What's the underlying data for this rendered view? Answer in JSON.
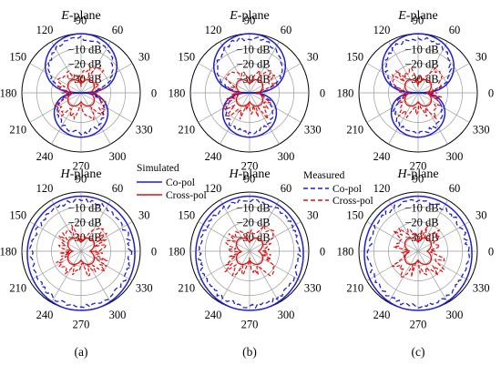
{
  "chart_data": {
    "type": "polar",
    "angle_ticks": [
      "0",
      "30",
      "60",
      "90",
      "120",
      "150",
      "180",
      "210",
      "240",
      "270",
      "300",
      "330"
    ],
    "radial_ticks": [
      "−10 dB",
      "−20 dB",
      "−30 dB"
    ],
    "rlim_db": [
      -40,
      0
    ],
    "subfigure_labels": [
      "(a)",
      "(b)",
      "(c)"
    ],
    "legend": {
      "simulated": {
        "heading": "Simulated",
        "co": "Co-pol",
        "cross": "Cross-pol"
      },
      "measured": {
        "heading": "Measured",
        "co": "Co-pol",
        "cross": "Cross-pol"
      }
    },
    "colors": {
      "co_pol": "#1f1fd0",
      "cross_pol": "#e01010",
      "grid": "#9a9a9a"
    },
    "panels": [
      {
        "id": "a-e",
        "col": 0,
        "row": 0,
        "plane_letter": "E",
        "plane_suffix": "-plane",
        "kind": "E",
        "seed": 3
      },
      {
        "id": "b-e",
        "col": 1,
        "row": 0,
        "plane_letter": "E",
        "plane_suffix": "-plane",
        "kind": "E",
        "seed": 11
      },
      {
        "id": "c-e",
        "col": 2,
        "row": 0,
        "plane_letter": "E",
        "plane_suffix": "-plane",
        "kind": "E",
        "seed": 19
      },
      {
        "id": "a-h",
        "col": 0,
        "row": 1,
        "plane_letter": "H",
        "plane_suffix": "-plane",
        "kind": "H",
        "seed": 7
      },
      {
        "id": "b-h",
        "col": 1,
        "row": 1,
        "plane_letter": "H",
        "plane_suffix": "-plane",
        "kind": "H",
        "seed": 23
      },
      {
        "id": "c-h",
        "col": 2,
        "row": 1,
        "plane_letter": "H",
        "plane_suffix": "-plane",
        "kind": "H",
        "seed": 31
      }
    ]
  }
}
